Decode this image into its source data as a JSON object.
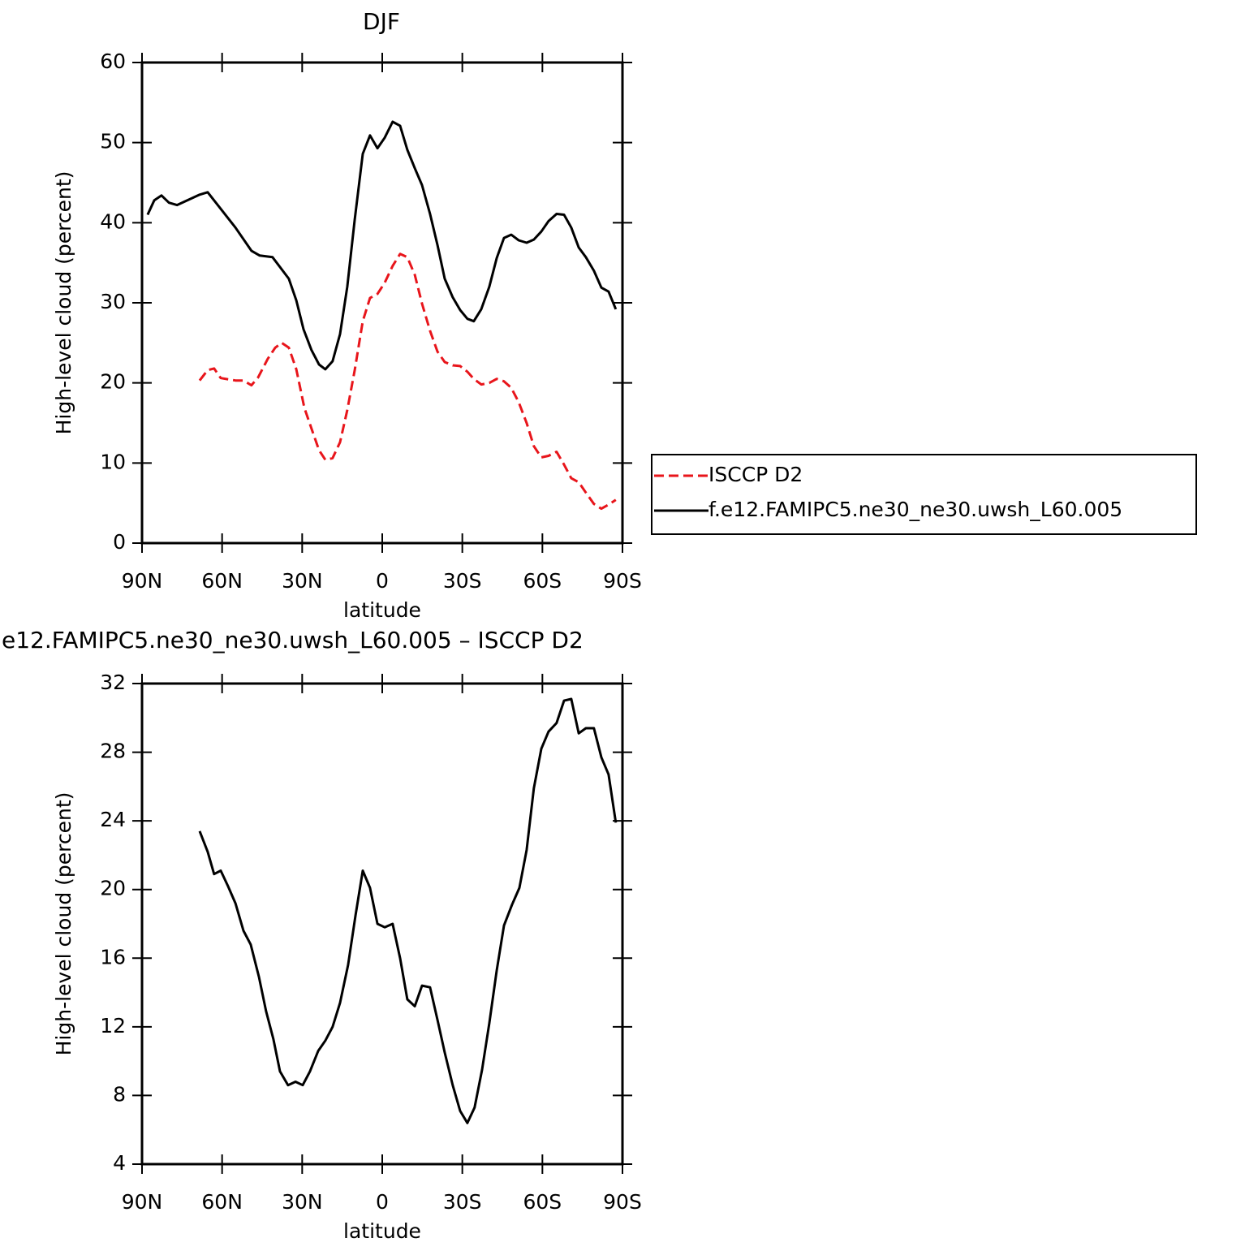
{
  "chart_data": [
    {
      "type": "line",
      "title": "DJF",
      "xlabel": "latitude",
      "ylabel": "High-level cloud (percent)",
      "xlim": [
        90,
        -90
      ],
      "xticks": [
        {
          "value": 90,
          "label": "90N"
        },
        {
          "value": 60,
          "label": "60N"
        },
        {
          "value": 30,
          "label": "30N"
        },
        0,
        {
          "value": -30,
          "label": "30S"
        },
        {
          "value": -60,
          "label": "60S"
        },
        {
          "value": -90,
          "label": "90S"
        }
      ],
      "ylim": [
        0,
        60
      ],
      "yticks": [
        0,
        10,
        20,
        30,
        40,
        50,
        60
      ],
      "series": [
        {
          "name": "ISCCP D2",
          "color": "#e8151b",
          "dash": true,
          "x": [
            68.4,
            65.4,
            63.0,
            60.5,
            55.0,
            52.0,
            49.0,
            46.5,
            42.9,
            40.1,
            37.7,
            35.0,
            32.2,
            29.2,
            26.5,
            23.7,
            21.3,
            18.6,
            15.8,
            13.1,
            10.3,
            7.3,
            4.6,
            1.8,
            -0.9,
            -3.9,
            -6.7,
            -9.4,
            -12.2,
            -14.9,
            -17.9,
            -20.7,
            -23.4,
            -26.4,
            -29.2,
            -31.9,
            -34.3,
            -37.1,
            -40.1,
            -42.9,
            -45.6,
            -48.3,
            -51.1,
            -54.1,
            -56.8,
            -59.6,
            -62.3,
            -65.3,
            -68.1,
            -70.8,
            -73.6,
            -76.3,
            -79.3,
            -82.1,
            -84.8,
            -87.5
          ],
          "values": [
            20.3,
            21.6,
            21.8,
            20.6,
            20.3,
            20.3,
            19.7,
            20.7,
            23.0,
            24.4,
            25.0,
            24.4,
            21.7,
            16.9,
            14.3,
            11.6,
            10.4,
            10.6,
            12.6,
            16.6,
            21.6,
            27.7,
            30.6,
            31.1,
            32.5,
            34.6,
            36.1,
            35.7,
            33.5,
            29.9,
            26.5,
            23.9,
            22.6,
            22.2,
            22.1,
            21.4,
            20.5,
            19.8,
            20.0,
            20.5,
            20.2,
            19.4,
            17.6,
            15.0,
            12.1,
            10.7,
            10.9,
            11.4,
            9.8,
            8.1,
            7.6,
            6.3,
            4.9,
            4.3,
            4.8,
            5.4
          ]
        },
        {
          "name": "f.e12.FAMIPC5.ne30_ne30.uwsh_L60.005",
          "color": "#000000",
          "dash": false,
          "x": [
            87.9,
            85.4,
            82.7,
            79.9,
            76.9,
            68.4,
            65.4,
            55.0,
            49.0,
            45.9,
            41.1,
            35.0,
            32.2,
            29.5,
            26.5,
            23.7,
            21.3,
            18.6,
            15.8,
            13.1,
            10.3,
            7.3,
            4.6,
            1.8,
            -0.9,
            -3.9,
            -6.7,
            -9.4,
            -12.2,
            -14.9,
            -17.9,
            -20.7,
            -23.4,
            -26.4,
            -29.2,
            -31.9,
            -34.3,
            -37.1,
            -40.1,
            -42.9,
            -45.6,
            -48.3,
            -51.1,
            -54.1,
            -56.8,
            -59.6,
            -62.3,
            -65.3,
            -68.1,
            -70.8,
            -73.6,
            -76.3,
            -79.3,
            -82.1,
            -84.8,
            -87.5
          ],
          "values": [
            41.0,
            42.8,
            43.4,
            42.5,
            42.2,
            43.5,
            43.8,
            39.4,
            36.5,
            35.9,
            35.7,
            33.0,
            30.3,
            26.7,
            24.1,
            22.3,
            21.7,
            22.7,
            26.1,
            32.0,
            40.4,
            48.6,
            50.9,
            49.3,
            50.6,
            52.6,
            52.1,
            49.1,
            46.8,
            44.7,
            41.1,
            37.2,
            33.0,
            30.7,
            29.1,
            28.0,
            27.7,
            29.2,
            32.0,
            35.6,
            38.1,
            38.5,
            37.8,
            37.5,
            37.9,
            38.9,
            40.2,
            41.1,
            41.0,
            39.4,
            36.9,
            35.7,
            34.0,
            31.9,
            31.4,
            29.2
          ]
        }
      ]
    },
    {
      "type": "line",
      "title": "e12.FAMIPC5.ne30_ne30.uwsh_L60.005 – ISCCP D2",
      "xlabel": "latitude",
      "ylabel": "High-level cloud (percent)",
      "xlim": [
        90,
        -90
      ],
      "xticks": [
        {
          "value": 90,
          "label": "90N"
        },
        {
          "value": 60,
          "label": "60N"
        },
        {
          "value": 30,
          "label": "30N"
        },
        0,
        {
          "value": -30,
          "label": "30S"
        },
        {
          "value": -60,
          "label": "60S"
        },
        {
          "value": -90,
          "label": "90S"
        }
      ],
      "ylim": [
        4,
        32
      ],
      "yticks": [
        4,
        8,
        12,
        16,
        20,
        24,
        28,
        32
      ],
      "series": [
        {
          "color": "#000000",
          "dash": false,
          "x": [
            68.4,
            65.4,
            63.0,
            60.5,
            57.8,
            55.0,
            52.0,
            49.3,
            46.2,
            43.5,
            40.8,
            38.3,
            35.3,
            32.5,
            29.8,
            27.1,
            24.0,
            21.3,
            18.6,
            15.8,
            12.8,
            10.0,
            7.3,
            4.6,
            1.8,
            -0.9,
            -3.9,
            -6.7,
            -9.4,
            -12.2,
            -14.9,
            -17.9,
            -20.7,
            -23.4,
            -26.4,
            -29.2,
            -31.9,
            -34.6,
            -37.4,
            -40.1,
            -42.9,
            -45.6,
            -48.6,
            -51.4,
            -54.1,
            -56.8,
            -59.6,
            -62.3,
            -65.3,
            -68.1,
            -70.8,
            -73.6,
            -76.3,
            -79.3,
            -82.1,
            -84.8,
            -87.5
          ],
          "values": [
            23.4,
            22.2,
            20.9,
            21.1,
            20.2,
            19.2,
            17.6,
            16.8,
            14.9,
            12.9,
            11.3,
            9.4,
            8.6,
            8.8,
            8.6,
            9.4,
            10.6,
            11.2,
            12.0,
            13.4,
            15.6,
            18.5,
            21.1,
            20.1,
            18.0,
            17.8,
            18.0,
            16.0,
            13.6,
            13.2,
            14.4,
            14.3,
            12.4,
            10.5,
            8.6,
            7.1,
            6.4,
            7.3,
            9.5,
            12.2,
            15.3,
            17.9,
            19.1,
            20.1,
            22.3,
            25.9,
            28.2,
            29.2,
            29.7,
            31.0,
            31.1,
            29.1,
            29.4,
            29.4,
            27.7,
            26.7,
            23.9
          ]
        }
      ]
    }
  ]
}
